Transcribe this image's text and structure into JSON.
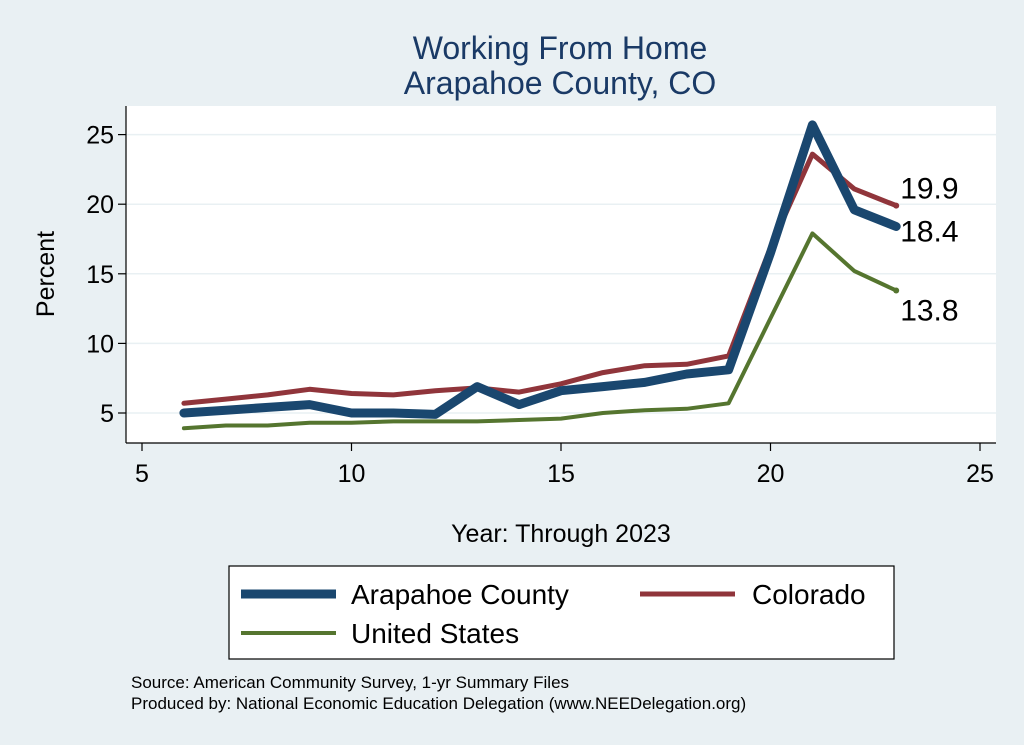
{
  "chart_data": {
    "type": "line",
    "title": [
      "Working From Home",
      "Arapahoe County, CO"
    ],
    "xlabel": "Year: Through 2023",
    "ylabel": "Percent",
    "xlim": [
      5,
      25
    ],
    "ylim": [
      3,
      26.5
    ],
    "xticks": [
      5,
      10,
      15,
      20,
      25
    ],
    "yticks": [
      5,
      10,
      15,
      20,
      25
    ],
    "grid": true,
    "legend_position": "bottom",
    "series": [
      {
        "name": "Arapahoe County",
        "color": "#1a476f",
        "width": 9,
        "x": [
          6,
          7,
          8,
          9,
          10,
          11,
          12,
          13,
          14,
          15,
          16,
          17,
          18,
          19,
          20,
          21,
          22,
          23
        ],
        "y": [
          5.0,
          5.2,
          5.4,
          5.6,
          5.0,
          5.0,
          4.9,
          6.9,
          5.6,
          6.6,
          6.9,
          7.2,
          7.8,
          8.1,
          16.5,
          25.7,
          19.6,
          18.4
        ],
        "end_label": "18.4"
      },
      {
        "name": "Colorado",
        "color": "#90353b",
        "width": 5,
        "x": [
          6,
          7,
          8,
          9,
          10,
          11,
          12,
          13,
          14,
          15,
          16,
          17,
          18,
          19,
          20,
          21,
          22,
          23
        ],
        "y": [
          5.7,
          6.0,
          6.3,
          6.7,
          6.4,
          6.3,
          6.6,
          6.8,
          6.5,
          7.1,
          7.9,
          8.4,
          8.5,
          9.1,
          16.9,
          23.6,
          21.1,
          19.9
        ],
        "end_label": "19.9"
      },
      {
        "name": "United States",
        "color": "#55752f",
        "width": 4,
        "x": [
          6,
          7,
          8,
          9,
          10,
          11,
          12,
          13,
          14,
          15,
          16,
          17,
          18,
          19,
          20,
          21,
          22,
          23
        ],
        "y": [
          3.9,
          4.1,
          4.1,
          4.3,
          4.3,
          4.4,
          4.4,
          4.4,
          4.5,
          4.6,
          5.0,
          5.2,
          5.3,
          5.7,
          11.8,
          17.9,
          15.2,
          13.8
        ],
        "end_label": "13.8"
      }
    ],
    "notes": [
      "Source: American Community Survey, 1-yr Summary Files",
      "Produced by: National Economic Education Delegation (www.NEEDelegation.org)"
    ]
  }
}
